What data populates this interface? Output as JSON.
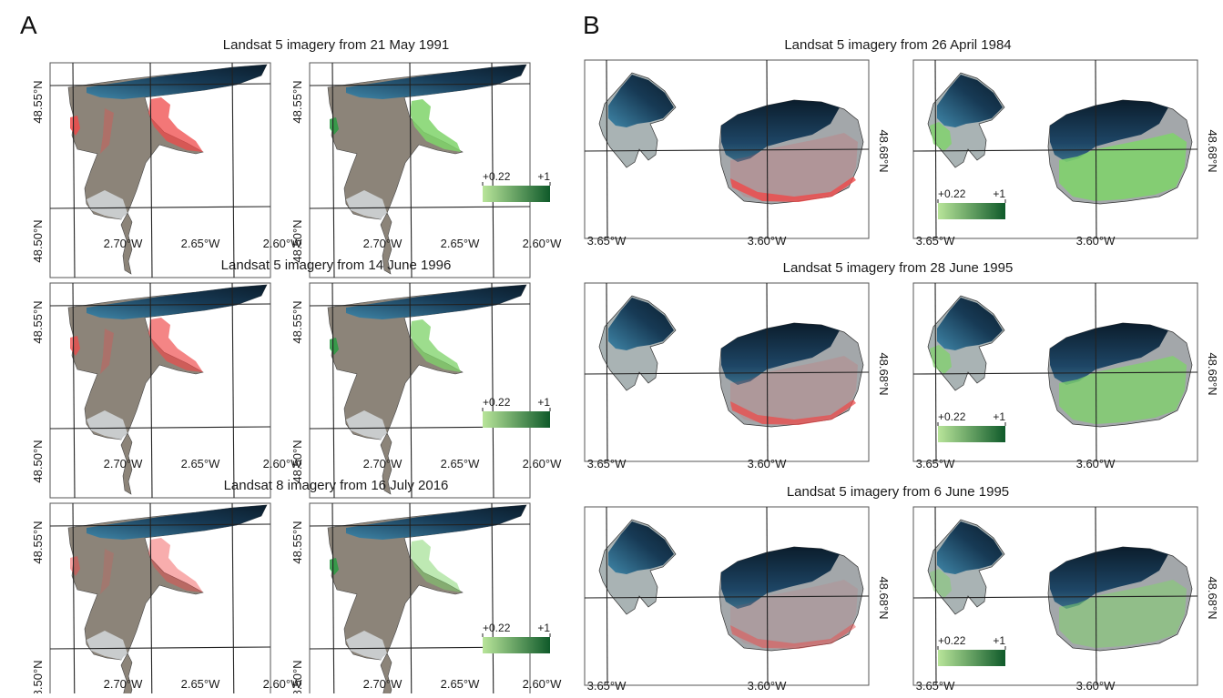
{
  "figure": {
    "panels": [
      {
        "letter": "A",
        "rows": [
          {
            "title": "Landsat 5 imagery from 21 May 1991",
            "image": "rgb-1991",
            "overlay": "ndvi-1991"
          },
          {
            "title": "Landsat 5 imagery from 14 June 1996",
            "image": "rgb-1996",
            "overlay": "ndvi-1996"
          },
          {
            "title": "Landsat 8 imagery from 16 July 2016",
            "image": "rgb-2016",
            "overlay": "ndvi-2016"
          }
        ],
        "x_ticks": [
          "2.70°W",
          "2.65°W",
          "2.60°W"
        ],
        "y_ticks": [
          "48.55°N",
          "48.50°N"
        ]
      },
      {
        "letter": "B",
        "rows": [
          {
            "title": "Landsat 5 imagery from 26 April 1984",
            "image": "rgb-1984",
            "overlay": "ndvi-1984"
          },
          {
            "title": "Landsat 5 imagery from 28 June 1995",
            "image": "rgb-1995a",
            "overlay": "ndvi-1995a"
          },
          {
            "title": "Landsat 5 imagery from 6 June 1995",
            "image": "rgb-1995b",
            "overlay": "ndvi-1995b"
          }
        ],
        "x_ticks": [
          "3.65°W",
          "3.60°W"
        ],
        "y_ticks": [
          "48.68°N"
        ]
      }
    ],
    "legend": {
      "min_label": "+0.22",
      "max_label": "+1",
      "color_low": "#b9e59a",
      "color_high": "#0f5a2a"
    },
    "colors": {
      "land": "#8c8479",
      "water": "#173a55",
      "water_deep": "#0b1d2c",
      "bright": "#d4d8dc",
      "red": "#ef4a4a",
      "green": "#7fd36a",
      "green_dark": "#2f9a45",
      "grid": "#222222",
      "frame": "#555555"
    }
  }
}
